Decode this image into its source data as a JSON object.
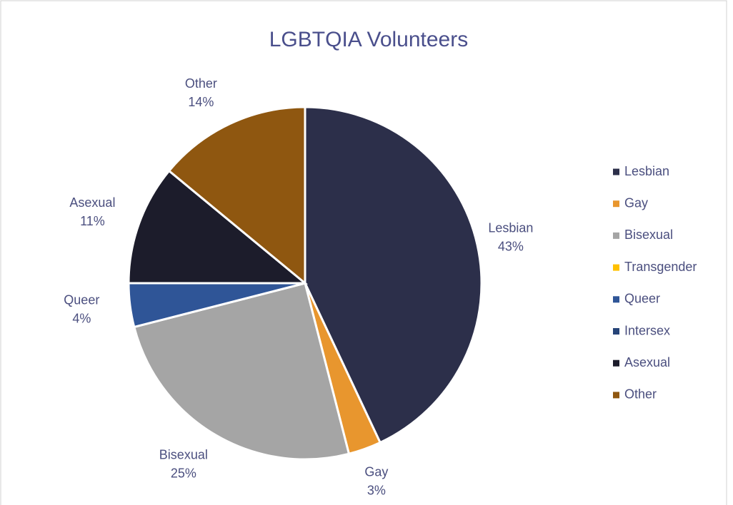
{
  "chart_data": {
    "type": "pie",
    "title": "LGBTQIA Volunteers",
    "categories": [
      "Lesbian",
      "Gay",
      "Bisexual",
      "Transgender",
      "Queer",
      "Intersex",
      "Asexual",
      "Other"
    ],
    "values": [
      43,
      3,
      25,
      0,
      4,
      0,
      11,
      14
    ],
    "value_labels": [
      "43%",
      "3%",
      "25%",
      null,
      "4%",
      null,
      "11%",
      "14%"
    ],
    "colors": [
      "#2c2f4a",
      "#e8962e",
      "#a5a5a5",
      "#ffc000",
      "#2f5597",
      "#264478",
      "#1c1c2b",
      "#8f5710"
    ],
    "legend": "right"
  }
}
